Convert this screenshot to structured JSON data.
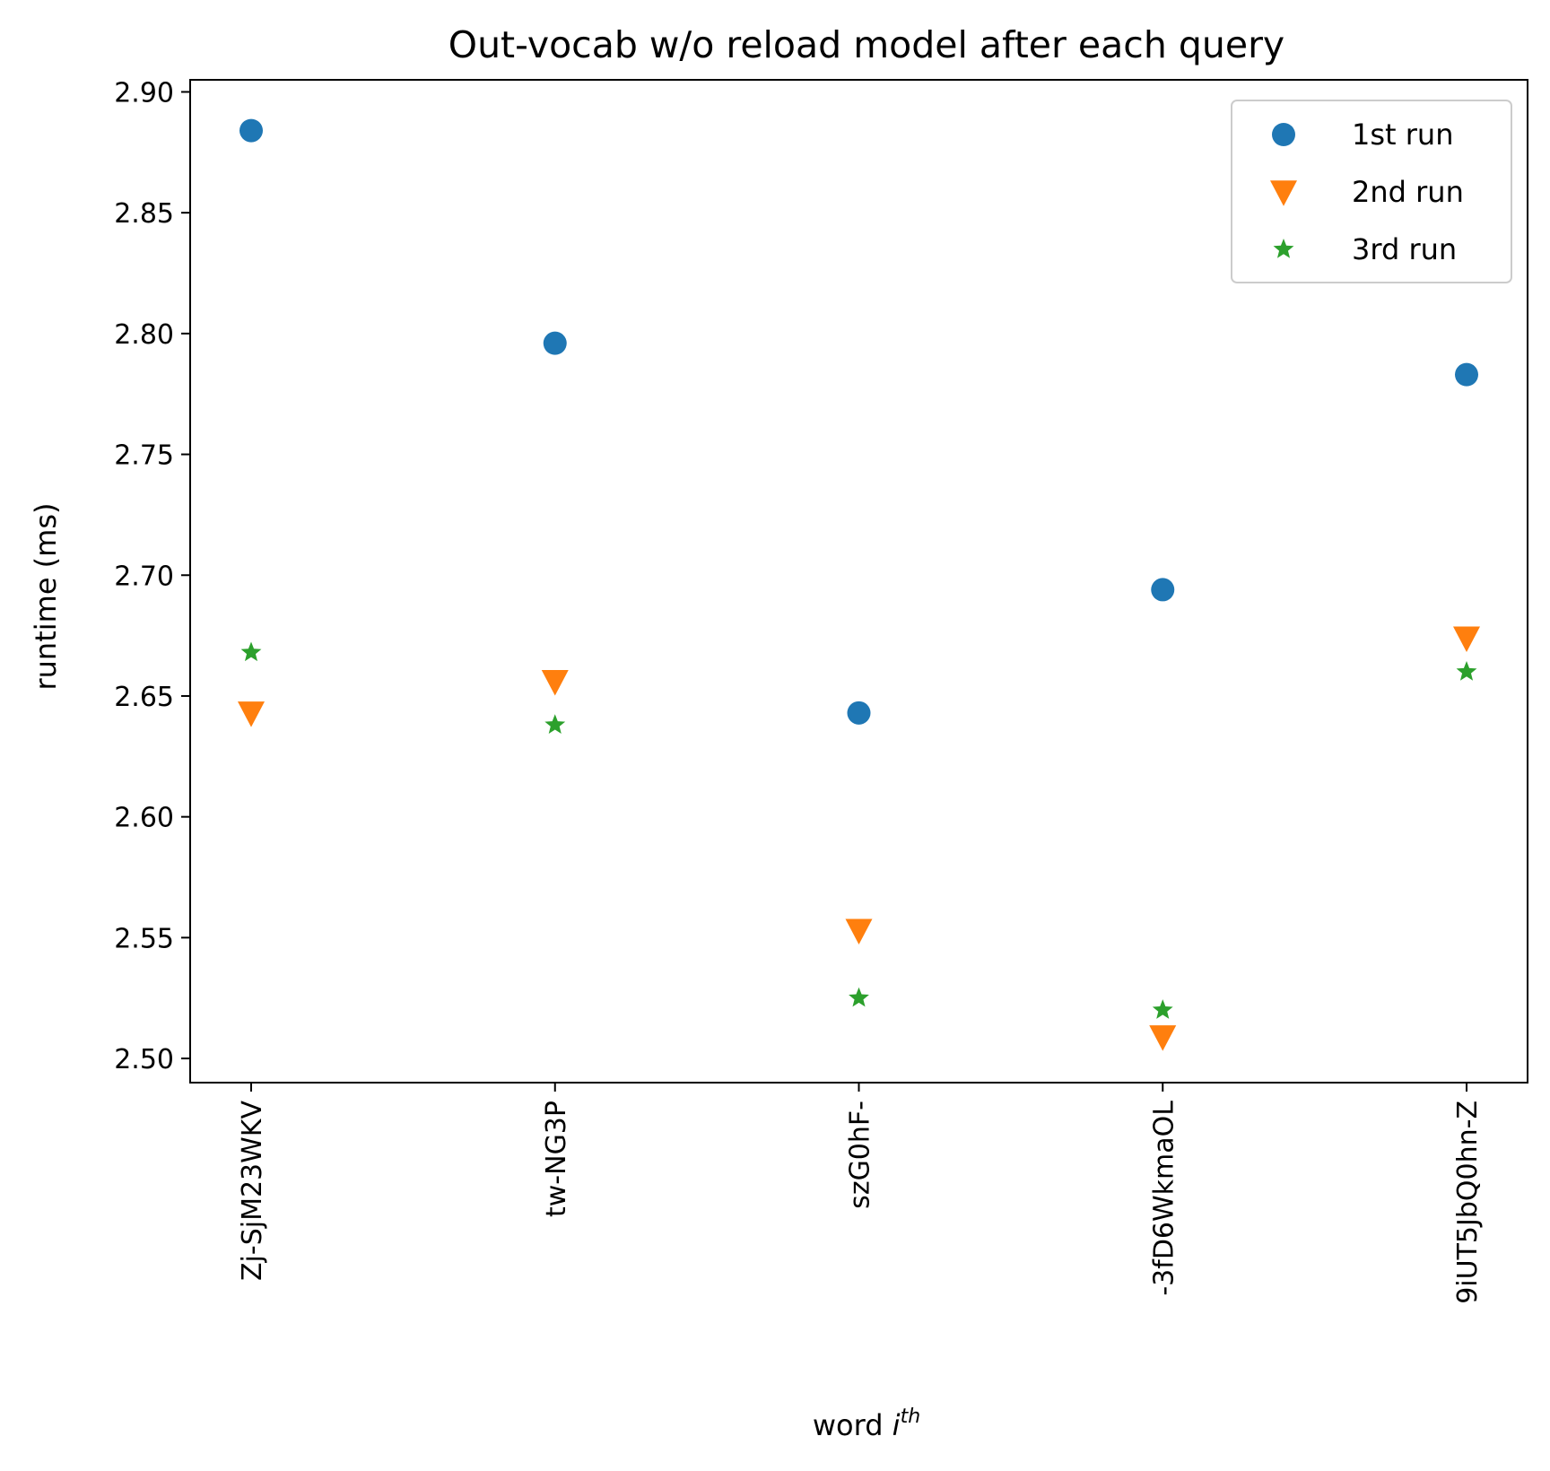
{
  "chart_data": {
    "type": "scatter",
    "title": "Out-vocab w/o reload model after each query",
    "xlabel": "word",
    "xlabel_superscript_base": "i",
    "xlabel_superscript": "th",
    "ylabel": "runtime (ms)",
    "categories": [
      "Zj-SjM23WKV",
      "tw-NG3P",
      "szG0hF-",
      "-3fD6WkmaOL",
      "9iUT5JbQ0hn-Z"
    ],
    "ylim": [
      2.49,
      2.905
    ],
    "yticks": [
      "2.50",
      "2.55",
      "2.60",
      "2.65",
      "2.70",
      "2.75",
      "2.80",
      "2.85",
      "2.90"
    ],
    "legend_position": "top-right",
    "grid": false,
    "series": [
      {
        "name": "1st run",
        "marker": "circle",
        "color": "#1f77b4",
        "values": [
          2.884,
          2.796,
          2.643,
          2.694,
          2.783
        ]
      },
      {
        "name": "2nd run",
        "marker": "triangle-down",
        "color": "#ff7f0e",
        "values": [
          2.643,
          2.656,
          2.553,
          2.509,
          2.674
        ]
      },
      {
        "name": "3rd run",
        "marker": "star",
        "color": "#2ca02c",
        "values": [
          2.668,
          2.638,
          2.525,
          2.52,
          2.66
        ]
      }
    ]
  }
}
